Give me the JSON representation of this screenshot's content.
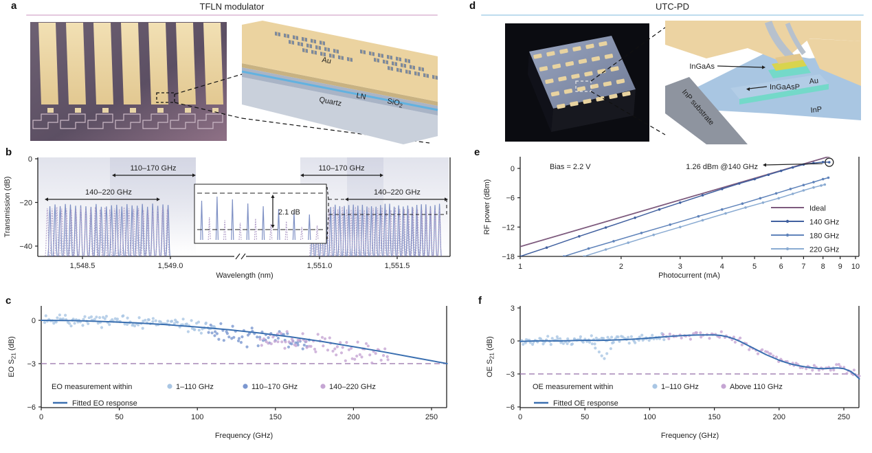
{
  "panels": {
    "a": {
      "label": "a",
      "title": "TFLN modulator",
      "rule_color": "#e4c8de",
      "schematic": {
        "au": "Au",
        "quartz": "Quartz",
        "ln": "LN",
        "sio2_pre": "SiO",
        "sio2_sub": "2"
      }
    },
    "d": {
      "label": "d",
      "title": "UTC-PD",
      "rule_color": "#bedcee",
      "schematic": {
        "ingaas": "InGaAs",
        "ingaasp": "InGaAsP",
        "au": "Au",
        "inp": "InP",
        "inp_substrate": "InP substrate"
      }
    },
    "b": {
      "label": "b"
    },
    "c": {
      "label": "c"
    },
    "e": {
      "label": "e"
    },
    "f": {
      "label": "f"
    }
  },
  "chart_data": [
    {
      "id": "b",
      "type": "line",
      "xlabel": "Wavelength (nm)",
      "ylabel": {
        "pre": "Transmission (dB)",
        "sub": "",
        "post": ""
      },
      "ylim": [
        -45,
        0
      ],
      "yticks": [
        0,
        -20,
        -40
      ],
      "x_axis_break": true,
      "xticks": [
        {
          "value": 1548.5,
          "label": "1,548.5"
        },
        {
          "value": 1549.0,
          "label": "1,549.0"
        },
        {
          "value": 1551.0,
          "label": "1,551.0"
        },
        {
          "value": 1551.5,
          "label": "1,551.5"
        }
      ],
      "comb": {
        "sigma_nm": 0.0045,
        "floor_dB": -46,
        "blue_top_dB": -21.3,
        "purple_top_dB": -22.8,
        "groups": [
          {
            "color": "blue",
            "start": 1548.315,
            "spacing": 0.0292,
            "count": 24
          },
          {
            "color": "purple",
            "start": 1548.3,
            "spacing": 0.0273,
            "count": 26
          },
          {
            "color": "blue",
            "start": 1550.955,
            "spacing": 0.0292,
            "count": 29
          },
          {
            "color": "purple",
            "start": 1550.947,
            "spacing": 0.0285,
            "count": 30
          }
        ]
      },
      "annotations": {
        "ranges": [
          "110–170 GHz",
          "140–220 GHz",
          "110–170 GHz",
          "140–220 GHz"
        ],
        "inset_label": "2.1 dB"
      },
      "colors": {
        "blue": "#7e90c4",
        "purple": "#b3a1ca",
        "shade": "#c9ccdd"
      }
    },
    {
      "id": "c",
      "type": "scatter+line",
      "xlabel": "Frequency (GHz)",
      "ylabel": {
        "pre": "EO S",
        "sub": "21",
        "post": " (dB)"
      },
      "xlim": [
        0,
        260
      ],
      "ylim": [
        -6,
        1
      ],
      "xticks": [
        0,
        50,
        100,
        150,
        200,
        250
      ],
      "yticks": [
        0,
        -3,
        -6
      ],
      "dash_level": -3,
      "fit_color": "#3a6fb0",
      "dash_color": "#a585b5",
      "fit": [
        [
          0,
          0
        ],
        [
          20,
          -0.02
        ],
        [
          40,
          -0.08
        ],
        [
          60,
          -0.17
        ],
        [
          80,
          -0.3
        ],
        [
          100,
          -0.46
        ],
        [
          120,
          -0.65
        ],
        [
          140,
          -0.88
        ],
        [
          160,
          -1.15
        ],
        [
          180,
          -1.47
        ],
        [
          200,
          -1.83
        ],
        [
          220,
          -2.2
        ],
        [
          240,
          -2.6
        ],
        [
          260,
          -3.0
        ]
      ],
      "scatter_groups": [
        {
          "name": "1–110 GHz",
          "color": "#a9c6e4",
          "x0": 2,
          "x1": 112,
          "n": 120,
          "jit": 0.9,
          "bias": 0.04,
          "seed": 11
        },
        {
          "name": "110–170 GHz",
          "color": "#7b97d0",
          "x0": 107,
          "x1": 172,
          "n": 60,
          "jit": 1.6,
          "bias": -0.25,
          "seed": 23
        },
        {
          "name": "140–220 GHz",
          "color": "#c5a5d3",
          "x0": 140,
          "x1": 223,
          "n": 72,
          "jit": 1.6,
          "bias": -0.25,
          "seed": 37
        }
      ],
      "outliers": null,
      "legend": {
        "intro": "EO measurement within",
        "fit_label": "Fitted EO response"
      }
    },
    {
      "id": "e",
      "type": "line",
      "xlabel": "Photocurrent (mA)",
      "ylabel": {
        "pre": "RF power (dBm)",
        "sub": "",
        "post": ""
      },
      "xscale": "log",
      "xlim": [
        1,
        10
      ],
      "ylim": [
        -18,
        2.4
      ],
      "xticks": [
        1,
        2,
        3,
        4,
        5,
        6,
        7,
        8,
        9,
        10
      ],
      "yticks": [
        0,
        -6,
        -12,
        -18
      ],
      "series": [
        {
          "name": "Ideal",
          "color": "#7d5a7d",
          "markers": false,
          "points": [
            [
              1,
              -16
            ],
            [
              9.7,
              3.74
            ]
          ]
        },
        {
          "name": "140 GHz",
          "color": "#40609f",
          "markers": true,
          "points": [
            [
              1,
              -18
            ],
            [
              1.2,
              -16.2
            ],
            [
              1.5,
              -13.9
            ],
            [
              1.8,
              -12.1
            ],
            [
              2.2,
              -10.1
            ],
            [
              2.6,
              -8.4
            ],
            [
              3,
              -7
            ],
            [
              3.5,
              -5.5
            ],
            [
              4,
              -4.2
            ],
            [
              4.5,
              -3.1
            ],
            [
              5,
              -2.2
            ],
            [
              5.5,
              -1.3
            ],
            [
              6,
              -0.5
            ],
            [
              6.5,
              0.2
            ],
            [
              7,
              0.8
            ],
            [
              7.5,
              1.1
            ],
            [
              8,
              1.3
            ],
            [
              8.35,
              1.26
            ]
          ]
        },
        {
          "name": "180 GHz",
          "color": "#5f83ba",
          "markers": true,
          "points": [
            [
              1.35,
              -18
            ],
            [
              1.6,
              -16.4
            ],
            [
              1.9,
              -14.9
            ],
            [
              2.3,
              -13.2
            ],
            [
              2.8,
              -11.5
            ],
            [
              3.4,
              -9.8
            ],
            [
              4,
              -8.4
            ],
            [
              4.6,
              -7.2
            ],
            [
              5.2,
              -6.1
            ],
            [
              5.8,
              -5.1
            ],
            [
              6.4,
              -4.2
            ],
            [
              7,
              -3.4
            ],
            [
              7.5,
              -2.8
            ],
            [
              8,
              -2.2
            ],
            [
              8.3,
              -1.9
            ]
          ]
        },
        {
          "name": "220 GHz",
          "color": "#8aabd2",
          "markers": true,
          "points": [
            [
              1.55,
              -18
            ],
            [
              1.8,
              -16.6
            ],
            [
              2.1,
              -15.2
            ],
            [
              2.5,
              -13.6
            ],
            [
              3,
              -12
            ],
            [
              3.5,
              -10.6
            ],
            [
              4.1,
              -9.2
            ],
            [
              4.7,
              -8
            ],
            [
              5.3,
              -7
            ],
            [
              5.9,
              -6.1
            ],
            [
              6.5,
              -5.2
            ],
            [
              7,
              -4.5
            ],
            [
              7.5,
              -3.9
            ],
            [
              7.9,
              -3.5
            ],
            [
              8.1,
              -3.3
            ]
          ]
        }
      ],
      "annotations": {
        "bias": "Bias = 2.2 V",
        "peak": "1.26 dBm @140 GHz",
        "peak_point": [
          8.35,
          1.26
        ]
      }
    },
    {
      "id": "f",
      "type": "scatter+line",
      "xlabel": "Frequency (GHz)",
      "ylabel": {
        "pre": "OE S",
        "sub": "21",
        "post": " (dB)"
      },
      "xlim": [
        0,
        263
      ],
      "ylim": [
        -6,
        3
      ],
      "xticks": [
        0,
        50,
        100,
        150,
        200,
        250
      ],
      "yticks": [
        3,
        0,
        -3,
        -6
      ],
      "dash_level": -3,
      "fit_color": "#3a6fb0",
      "dash_color": "#a585b5",
      "fit": [
        [
          0,
          -0.05
        ],
        [
          10,
          0
        ],
        [
          20,
          0.02
        ],
        [
          30,
          0
        ],
        [
          40,
          0.03
        ],
        [
          50,
          0.06
        ],
        [
          60,
          0.05
        ],
        [
          70,
          0.08
        ],
        [
          80,
          0.12
        ],
        [
          90,
          0.18
        ],
        [
          100,
          0.27
        ],
        [
          110,
          0.36
        ],
        [
          120,
          0.45
        ],
        [
          130,
          0.52
        ],
        [
          140,
          0.55
        ],
        [
          150,
          0.55
        ],
        [
          155,
          0.5
        ],
        [
          160,
          0.38
        ],
        [
          165,
          0.2
        ],
        [
          170,
          -0.05
        ],
        [
          175,
          -0.35
        ],
        [
          180,
          -0.65
        ],
        [
          185,
          -0.95
        ],
        [
          190,
          -1.25
        ],
        [
          195,
          -1.5
        ],
        [
          200,
          -1.75
        ],
        [
          205,
          -1.95
        ],
        [
          210,
          -2.12
        ],
        [
          215,
          -2.25
        ],
        [
          220,
          -2.35
        ],
        [
          225,
          -2.43
        ],
        [
          230,
          -2.5
        ],
        [
          235,
          -2.52
        ],
        [
          240,
          -2.48
        ],
        [
          245,
          -2.45
        ],
        [
          250,
          -2.52
        ],
        [
          255,
          -2.75
        ],
        [
          258,
          -3.0
        ],
        [
          262,
          -3.45
        ]
      ],
      "scatter_groups": [
        {
          "name": "1–110 GHz",
          "color": "#a9c6e4",
          "x0": 1,
          "x1": 112,
          "n": 100,
          "jit": 0.8,
          "bias": 0,
          "seed": 13
        },
        {
          "name": "Above 110 GHz",
          "color": "#c5a5d3",
          "x0": 110,
          "x1": 263,
          "n": 88,
          "jit": 0.7,
          "bias": 0,
          "seed": 29
        }
      ],
      "outliers": {
        "group": 0,
        "points": [
          [
            58,
            -0.65
          ],
          [
            61,
            -1.0
          ],
          [
            63,
            -1.35
          ],
          [
            65,
            -1.6
          ],
          [
            67,
            -1.15
          ],
          [
            70,
            -0.7
          ]
        ]
      },
      "legend": {
        "intro": "OE measurement within",
        "fit_label": "Fitted OE response"
      }
    }
  ]
}
